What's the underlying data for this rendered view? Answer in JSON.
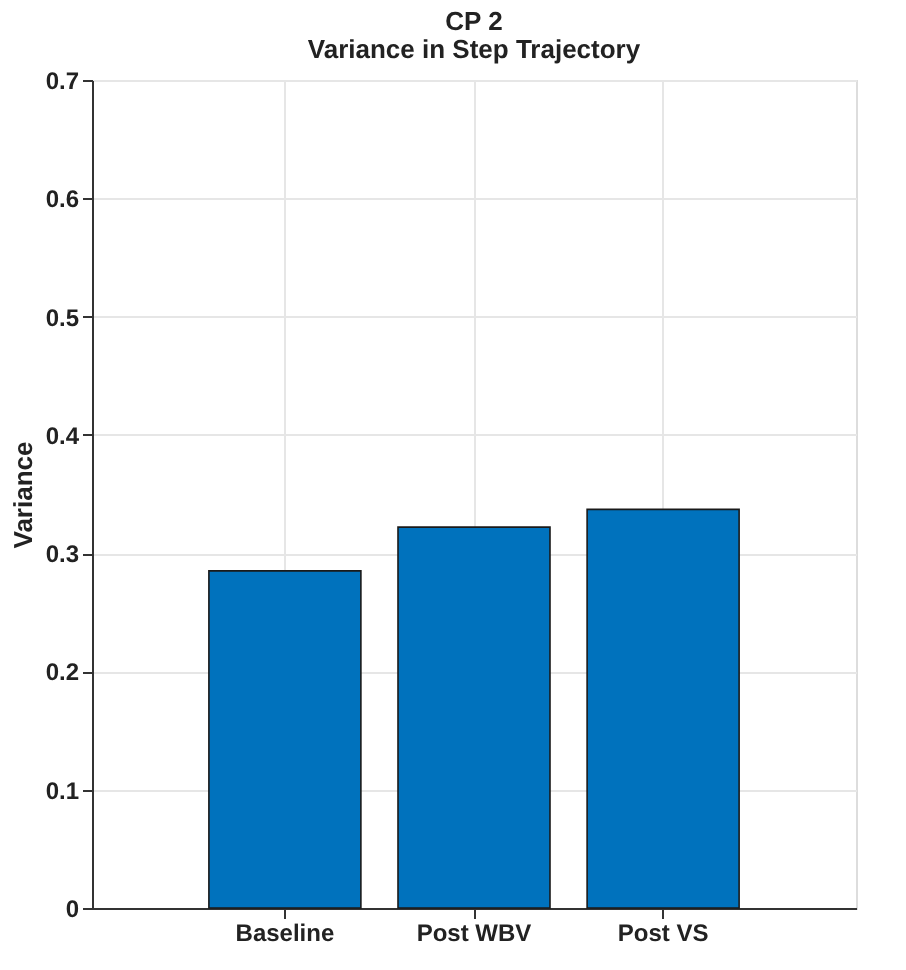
{
  "chart_data": {
    "type": "bar",
    "title": "CP 2",
    "subtitle": "Variance in Step Trajectory",
    "ylabel": "Variance",
    "categories": [
      "Baseline",
      "Post WBV",
      "Post VS"
    ],
    "values": [
      0.285,
      0.322,
      0.337
    ],
    "color": "#0072bd",
    "ylim": [
      0,
      0.7
    ],
    "yticks": [
      0,
      0.1,
      0.2,
      0.3,
      0.4,
      0.5,
      0.6,
      0.7
    ],
    "grid": true
  }
}
